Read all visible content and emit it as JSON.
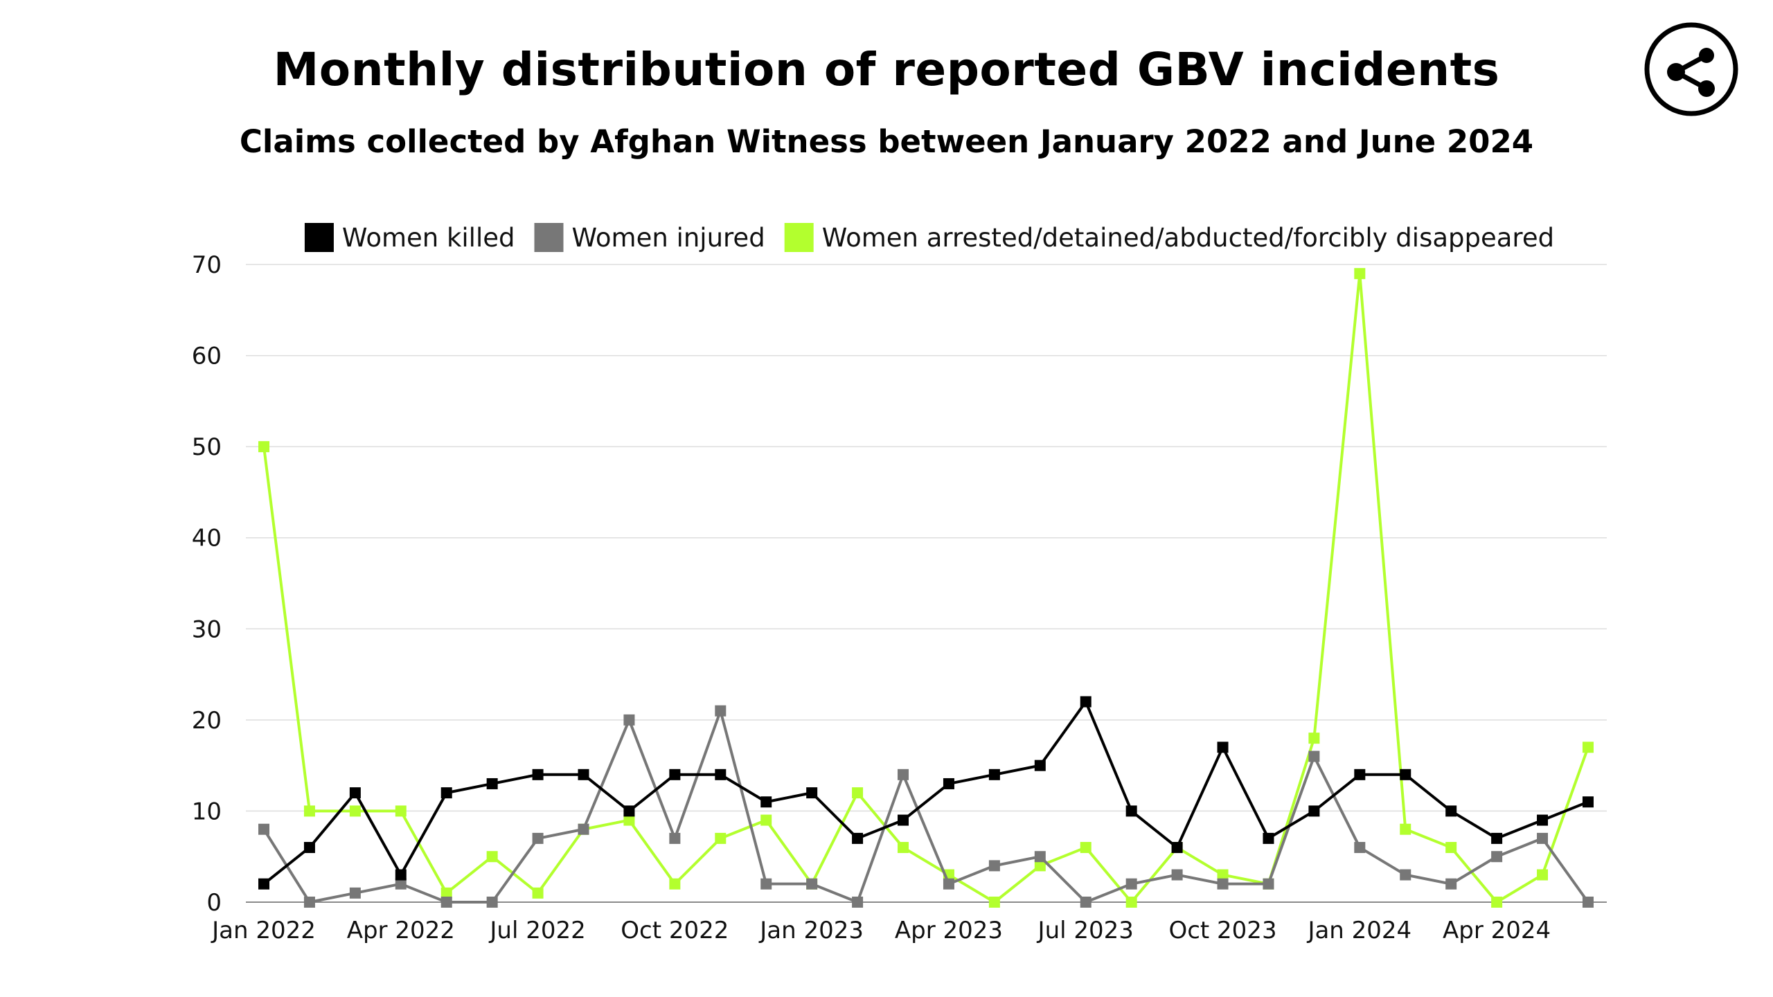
{
  "title": "Monthly distribution of reported GBV incidents",
  "subtitle": "Claims collected by Afghan Witness between January 2022 and June 2024",
  "share_icon": "share-icon",
  "chart_data": {
    "type": "line",
    "x": [
      "Jan 2022",
      "Feb 2022",
      "Mar 2022",
      "Apr 2022",
      "May 2022",
      "Jun 2022",
      "Jul 2022",
      "Aug 2022",
      "Sep 2022",
      "Oct 2022",
      "Nov 2022",
      "Dec 2022",
      "Jan 2023",
      "Feb 2023",
      "Mar 2023",
      "Apr 2023",
      "May 2023",
      "Jun 2023",
      "Jul 2023",
      "Aug 2023",
      "Sep 2023",
      "Oct 2023",
      "Nov 2023",
      "Dec 2023",
      "Jan 2024",
      "Feb 2024",
      "Mar 2024",
      "Apr 2024",
      "May 2024",
      "Jun 2024"
    ],
    "xtick_labels": [
      {
        "index": 0,
        "label": "Jan 2022"
      },
      {
        "index": 3,
        "label": "Apr 2022"
      },
      {
        "index": 6,
        "label": "Jul 2022"
      },
      {
        "index": 9,
        "label": "Oct 2022"
      },
      {
        "index": 12,
        "label": "Jan 2023"
      },
      {
        "index": 15,
        "label": "Apr 2023"
      },
      {
        "index": 18,
        "label": "Jul 2023"
      },
      {
        "index": 21,
        "label": "Oct 2023"
      },
      {
        "index": 24,
        "label": "Jan 2024"
      },
      {
        "index": 27,
        "label": "Apr 2024"
      }
    ],
    "yticks": [
      0,
      10,
      20,
      30,
      40,
      50,
      60,
      70
    ],
    "ylim": [
      0,
      70
    ],
    "grid": true,
    "legend_position": "top",
    "series": [
      {
        "name": "Women killed",
        "color": "#000000",
        "values": [
          2,
          6,
          12,
          3,
          12,
          13,
          14,
          14,
          10,
          14,
          14,
          11,
          12,
          7,
          9,
          13,
          14,
          15,
          22,
          10,
          6,
          17,
          7,
          10,
          14,
          14,
          10,
          7,
          9,
          11
        ]
      },
      {
        "name": "Women injured",
        "color": "#777777",
        "values": [
          8,
          0,
          1,
          2,
          0,
          0,
          7,
          8,
          20,
          7,
          21,
          2,
          2,
          0,
          14,
          2,
          4,
          5,
          0,
          2,
          3,
          2,
          2,
          16,
          6,
          3,
          2,
          5,
          7,
          0
        ]
      },
      {
        "name": "Women arrested/detained/abducted/forcibly disappeared",
        "color": "#b3ff2e",
        "values": [
          50,
          10,
          10,
          10,
          1,
          5,
          1,
          8,
          9,
          2,
          7,
          9,
          2,
          12,
          6,
          3,
          0,
          4,
          6,
          0,
          6,
          3,
          2,
          18,
          69,
          8,
          6,
          0,
          3,
          17
        ]
      }
    ]
  }
}
